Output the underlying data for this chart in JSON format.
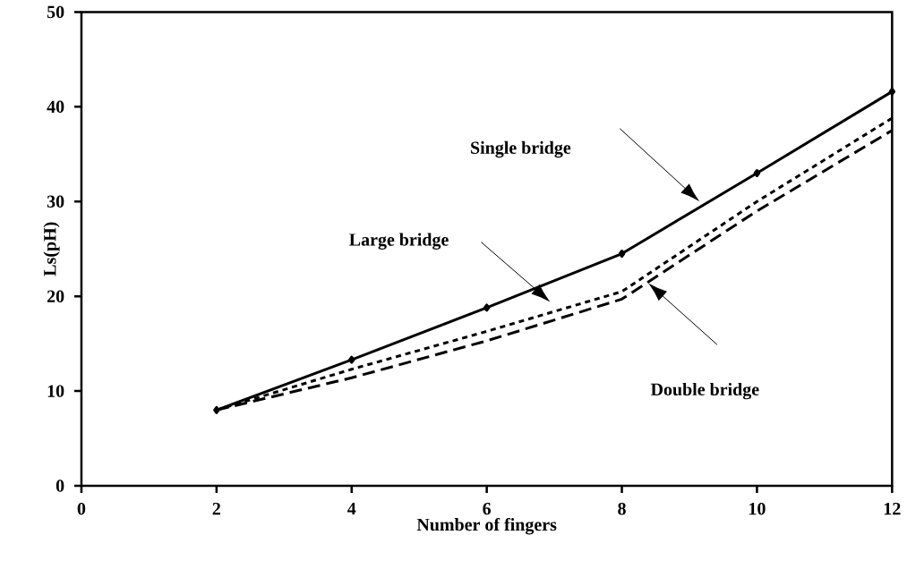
{
  "chart_data": {
    "type": "line",
    "xlabel": "Number of fingers",
    "ylabel": "Ls(pH)",
    "x": [
      2,
      4,
      6,
      8,
      10,
      12
    ],
    "series": [
      {
        "color": "#000000",
        "values": [
          8,
          13.3,
          18.8,
          24.5,
          33,
          41.6
        ],
        "line_style": "solid",
        "marker": "diamond"
      },
      {
        "color": "#000000",
        "values": [
          8,
          12.3,
          16.3,
          20.5,
          30,
          38.8
        ],
        "line_style": "dotted",
        "marker": "none"
      },
      {
        "color": "#000000",
        "values": [
          8,
          11.4,
          15.3,
          19.7,
          29,
          37.5
        ],
        "line_style": "dashed",
        "marker": "none"
      }
    ],
    "annotations": [
      "Single bridge",
      "Large bridge",
      "Double bridge"
    ],
    "xlim": [
      0,
      12
    ],
    "ylim": [
      0,
      50
    ],
    "xticks": [
      0,
      2,
      4,
      6,
      8,
      10,
      12
    ],
    "yticks": [
      0,
      10,
      20,
      30,
      40,
      50
    ],
    "grid": false
  }
}
